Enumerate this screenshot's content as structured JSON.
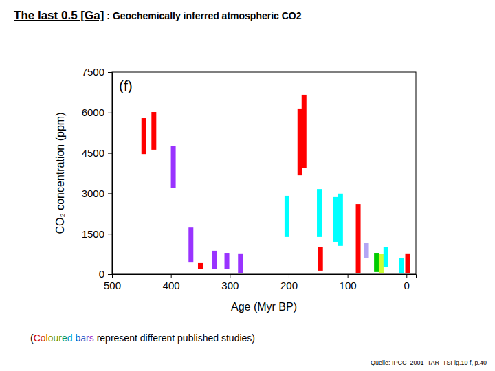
{
  "chart_data": {
    "type": "range_bar",
    "title": "The last 0.5 [Ga]",
    "subtitle": ": Geochemically inferred atmospheric CO2",
    "panel_label": "(f)",
    "note": "(Coloured bars represent different published studies)",
    "source": "Quelle: IPCC_2001_TAR_TSFig.10 f, p.40",
    "xlabel": "Age (Myr BP)",
    "ylabel": "CO₂ concentration (ppm)",
    "xlim": [
      500,
      -16
    ],
    "xticks": [
      500,
      400,
      300,
      200,
      100,
      0
    ],
    "ylim": [
      0,
      7500
    ],
    "yticks": [
      0,
      1500,
      3000,
      4500,
      6000,
      7500
    ],
    "x": [
      446,
      429,
      396,
      366,
      350,
      326,
      305,
      282,
      203,
      181,
      174,
      148,
      146,
      121,
      112,
      82,
      68,
      51,
      43,
      35,
      9,
      -2
    ],
    "low": [
      4460,
      4620,
      3190,
      430,
      180,
      200,
      200,
      50,
      1380,
      3670,
      3930,
      1380,
      130,
      1200,
      1050,
      50,
      610,
      80,
      50,
      280,
      50,
      50
    ],
    "high": [
      5790,
      6020,
      4770,
      1730,
      410,
      870,
      790,
      770,
      2910,
      6150,
      6660,
      3160,
      1000,
      2860,
      2990,
      2600,
      1150,
      790,
      740,
      1020,
      590,
      770
    ],
    "colors": [
      "#ff0000",
      "#ff0000",
      "#9933ff",
      "#9933ff",
      "#ff0000",
      "#9933ff",
      "#9933ff",
      "#9933ff",
      "#00ffff",
      "#ff0000",
      "#ff0000",
      "#00ffff",
      "#ff0000",
      "#00ffff",
      "#00ffff",
      "#ff0000",
      "#b3a6f5",
      "#00cc00",
      "#ccff33",
      "#00ffff",
      "#00ffff",
      "#ff0000"
    ]
  }
}
